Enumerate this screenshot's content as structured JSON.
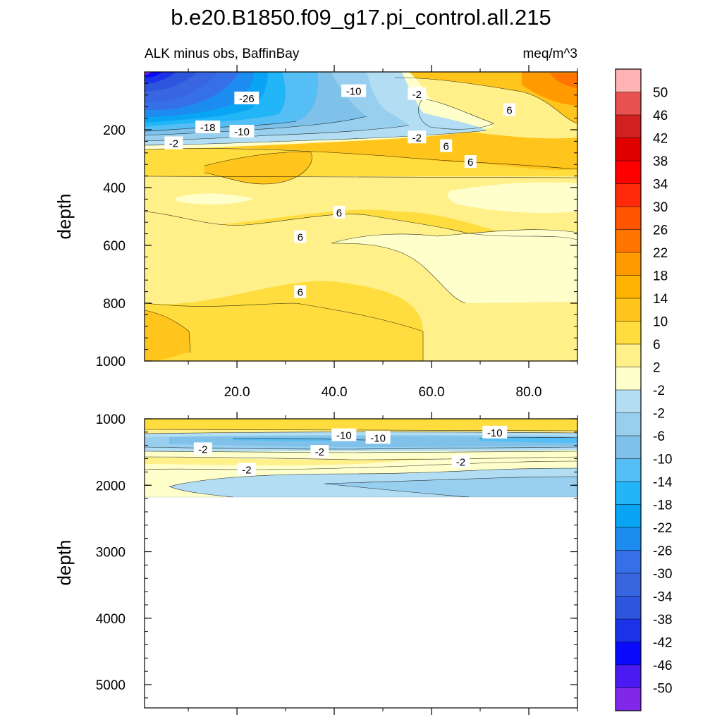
{
  "chart_data": {
    "type": "contour",
    "title": "b.e20.B1850.f09_g17.pi_control.all.215",
    "subtitle_left": "ALK minus obs, BaffinBay",
    "subtitle_right": "meq/m^3",
    "panels": [
      {
        "name": "upper",
        "ylabel": "depth",
        "ylim": [
          1000,
          0
        ],
        "xlim": [
          1,
          90
        ],
        "yticks": [
          200,
          400,
          600,
          800,
          1000
        ],
        "xticks": [
          20,
          40,
          60,
          80
        ],
        "xtick_labels": [
          "20.0",
          "40.0",
          "60.0",
          "80.0"
        ],
        "contour_labels": [
          {
            "text": "-26",
            "x": 22,
            "y": 90
          },
          {
            "text": "-10",
            "x": 44,
            "y": 65
          },
          {
            "text": "-2",
            "x": 57,
            "y": 75
          },
          {
            "text": "6",
            "x": 76,
            "y": 130
          },
          {
            "text": "-18",
            "x": 14,
            "y": 190
          },
          {
            "text": "-10",
            "x": 21,
            "y": 205
          },
          {
            "text": "-2",
            "x": 7,
            "y": 245
          },
          {
            "text": "-2",
            "x": 57,
            "y": 225
          },
          {
            "text": "6",
            "x": 63,
            "y": 255
          },
          {
            "text": "6",
            "x": 68,
            "y": 310
          },
          {
            "text": "6",
            "x": 41,
            "y": 485
          },
          {
            "text": "6",
            "x": 33,
            "y": 570
          },
          {
            "text": "6",
            "x": 33,
            "y": 760
          }
        ]
      },
      {
        "name": "lower",
        "ylabel": "depth",
        "ylim": [
          5350,
          1000
        ],
        "xlim": [
          1,
          90
        ],
        "yticks": [
          1000,
          2000,
          3000,
          4000,
          5000
        ],
        "data_bottom_depth": 2200,
        "contour_labels": [
          {
            "text": "-10",
            "x": 42,
            "y": 1240
          },
          {
            "text": "-10",
            "x": 49,
            "y": 1280
          },
          {
            "text": "-10",
            "x": 73,
            "y": 1200
          },
          {
            "text": "-2",
            "x": 13,
            "y": 1450
          },
          {
            "text": "-2",
            "x": 37,
            "y": 1490
          },
          {
            "text": "-2",
            "x": 66,
            "y": 1640
          },
          {
            "text": "-2",
            "x": 22,
            "y": 1760
          }
        ]
      }
    ],
    "colorbar": {
      "labels": [
        "50",
        "46",
        "42",
        "38",
        "34",
        "30",
        "26",
        "22",
        "18",
        "14",
        "10",
        "6",
        "2",
        "-2",
        "-2",
        "-6",
        "-10",
        "-14",
        "-18",
        "-22",
        "-26",
        "-30",
        "-34",
        "-38",
        "-42",
        "-46",
        "-50"
      ],
      "colors": [
        "#FFB3B3",
        "#E8514F",
        "#D21F1F",
        "#E00000",
        "#FF0000",
        "#FF2A0A",
        "#FF5500",
        "#FF7500",
        "#FF9A00",
        "#FFB200",
        "#FFC51C",
        "#FFDD3F",
        "#FFF08A",
        "#FFFFCC",
        "#B2DDF2",
        "#98CFEE",
        "#7FC1E8",
        "#55BFF5",
        "#22B5F8",
        "#09A5F4",
        "#1C8CF0",
        "#3570E8",
        "#3866E0",
        "#2E55DD",
        "#1B33E8",
        "#0A0AFA",
        "#4B1AF0",
        "#8128E8"
      ]
    }
  }
}
